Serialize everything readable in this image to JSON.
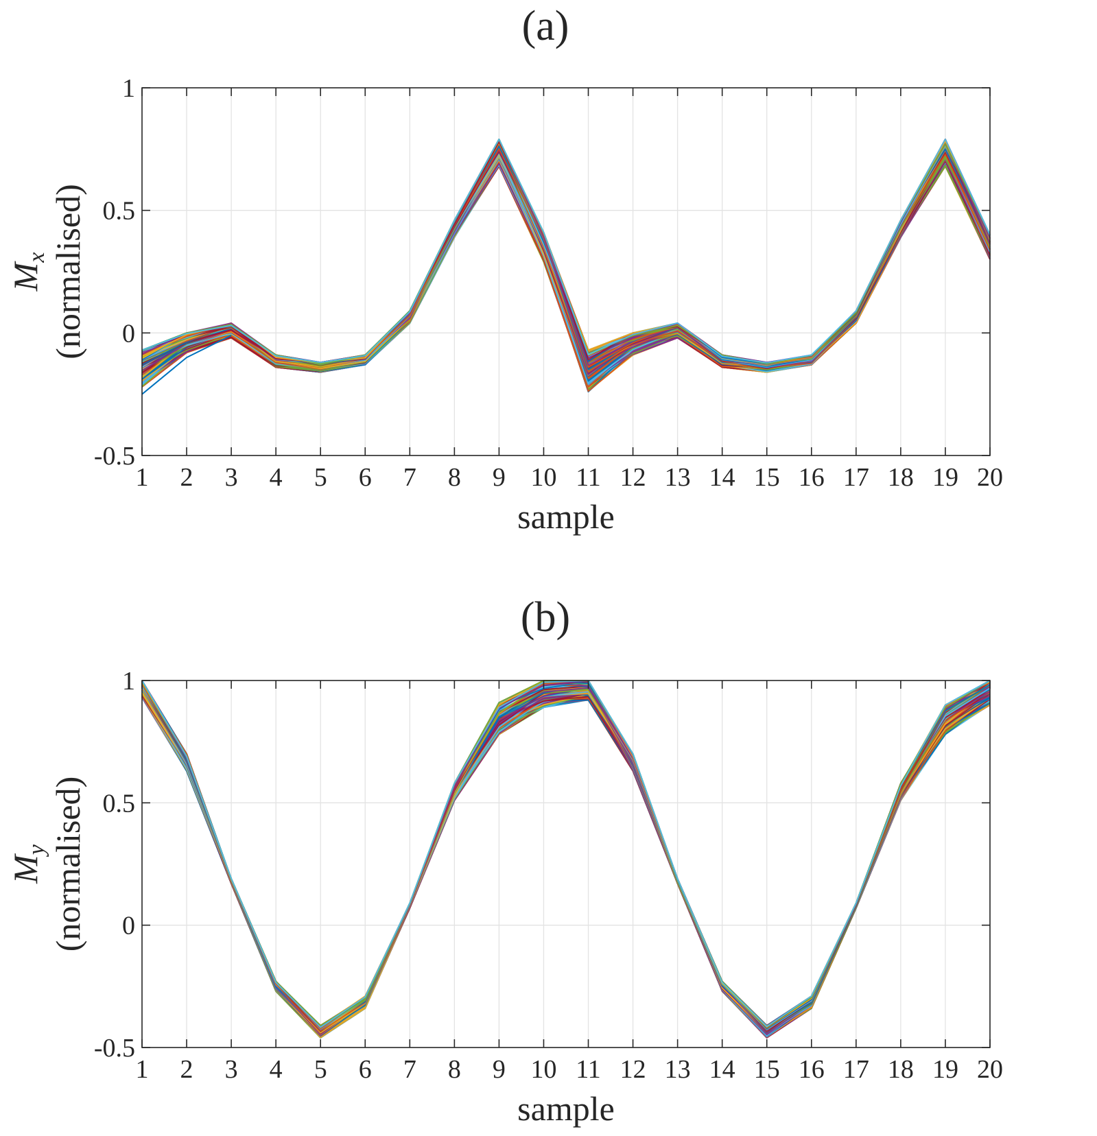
{
  "chart_data": [
    {
      "type": "line",
      "title": "(a)",
      "xlabel": "sample",
      "ylabel_symbol": "M",
      "ylabel_subscript": "x",
      "ylabel_text": "(normalised)",
      "xlim": [
        1,
        20
      ],
      "ylim": [
        -0.5,
        1
      ],
      "xticks": [
        1,
        2,
        3,
        4,
        5,
        6,
        7,
        8,
        9,
        10,
        11,
        12,
        13,
        14,
        15,
        16,
        17,
        18,
        19,
        20
      ],
      "yticks": [
        -0.5,
        0,
        0.5,
        1
      ],
      "ytick_labels": [
        "-0.5",
        "0",
        "0.5",
        "1"
      ],
      "grid": true,
      "series_count_note": "many overlapping traces",
      "band": {
        "x": [
          1,
          2,
          3,
          4,
          5,
          6,
          7,
          8,
          9,
          10,
          11,
          12,
          13,
          14,
          15,
          16,
          17,
          18,
          19,
          20
        ],
        "lower": [
          -0.22,
          -0.08,
          -0.02,
          -0.14,
          -0.16,
          -0.13,
          0.04,
          0.39,
          0.68,
          0.29,
          -0.24,
          -0.09,
          -0.02,
          -0.14,
          -0.16,
          -0.13,
          0.04,
          0.39,
          0.68,
          0.3
        ],
        "upper": [
          -0.07,
          0.0,
          0.04,
          -0.09,
          -0.12,
          -0.09,
          0.09,
          0.46,
          0.79,
          0.41,
          -0.07,
          0.0,
          0.04,
          -0.09,
          -0.12,
          -0.09,
          0.09,
          0.46,
          0.79,
          0.4
        ]
      },
      "outlier": {
        "x": [
          1,
          2,
          3
        ],
        "y": [
          -0.25,
          -0.1,
          -0.01
        ]
      }
    },
    {
      "type": "line",
      "title": "(b)",
      "xlabel": "sample",
      "ylabel_symbol": "M",
      "ylabel_subscript": "y",
      "ylabel_text": "(normalised)",
      "xlim": [
        1,
        20
      ],
      "ylim": [
        -0.5,
        1
      ],
      "xticks": [
        1,
        2,
        3,
        4,
        5,
        6,
        7,
        8,
        9,
        10,
        11,
        12,
        13,
        14,
        15,
        16,
        17,
        18,
        19,
        20
      ],
      "yticks": [
        -0.5,
        0,
        0.5,
        1
      ],
      "ytick_labels": [
        "-0.5",
        "0",
        "0.5",
        "1"
      ],
      "grid": true,
      "series_count_note": "many overlapping traces",
      "band": {
        "x": [
          1,
          2,
          3,
          4,
          5,
          6,
          7,
          8,
          9,
          10,
          11,
          12,
          13,
          14,
          15,
          16,
          17,
          18,
          19,
          20
        ],
        "lower": [
          0.93,
          0.63,
          0.17,
          -0.27,
          -0.46,
          -0.34,
          0.07,
          0.51,
          0.78,
          0.89,
          0.92,
          0.63,
          0.17,
          -0.27,
          -0.46,
          -0.34,
          0.07,
          0.51,
          0.78,
          0.9
        ],
        "upper": [
          1.0,
          0.7,
          0.19,
          -0.23,
          -0.41,
          -0.29,
          0.09,
          0.58,
          0.91,
          1.0,
          1.0,
          0.7,
          0.19,
          -0.23,
          -0.41,
          -0.29,
          0.09,
          0.58,
          0.9,
          1.0
        ]
      }
    }
  ],
  "palette": [
    "#0072BD",
    "#D95319",
    "#EDB120",
    "#7E2F8E",
    "#77AC30",
    "#4DBEEE",
    "#A2142F"
  ],
  "trace_count": 90
}
